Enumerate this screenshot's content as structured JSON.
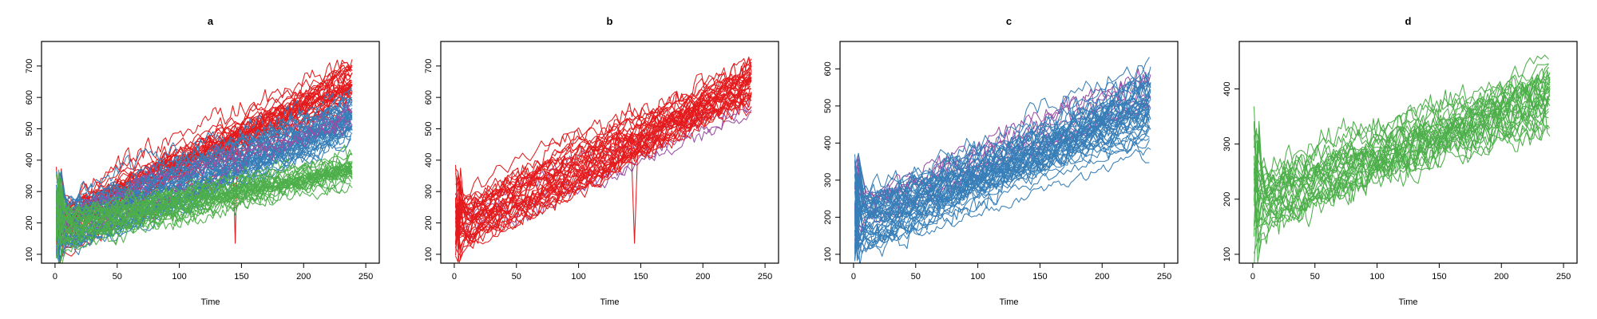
{
  "chart_data": [
    {
      "type": "line",
      "title": "a",
      "xlabel": "Time",
      "ylabel": "",
      "xlim": [
        0,
        250
      ],
      "ylim": [
        100,
        750
      ],
      "x_ticks": [
        0,
        50,
        100,
        150,
        200,
        250
      ],
      "y_ticks": [
        100,
        200,
        300,
        400,
        500,
        600,
        700
      ],
      "grid": false,
      "series": [
        {
          "color": "#E41A1C",
          "lines": 38,
          "x_range": [
            1,
            240
          ],
          "start": [
            120,
            250
          ],
          "end": [
            540,
            730
          ],
          "spike": {
            "x": 145,
            "y": 135
          }
        },
        {
          "color": "#377EB8",
          "lines": 45,
          "x_range": [
            1,
            240
          ],
          "start": [
            100,
            240
          ],
          "end": [
            420,
            620
          ]
        },
        {
          "color": "#984EA3",
          "lines": 4,
          "x_range": [
            1,
            240
          ],
          "start": [
            150,
            240
          ],
          "end": [
            460,
            600
          ]
        },
        {
          "color": "#4DAF4A",
          "lines": 30,
          "x_range": [
            1,
            240
          ],
          "start": [
            110,
            230
          ],
          "end": [
            300,
            430
          ]
        }
      ]
    },
    {
      "type": "line",
      "title": "b",
      "xlabel": "Time",
      "ylabel": "",
      "xlim": [
        0,
        250
      ],
      "ylim": [
        100,
        750
      ],
      "x_ticks": [
        0,
        50,
        100,
        150,
        200,
        250
      ],
      "y_ticks": [
        100,
        200,
        300,
        400,
        500,
        600,
        700
      ],
      "grid": false,
      "series": [
        {
          "color": "#984EA3",
          "lines": 3,
          "x_range": [
            1,
            240
          ],
          "start": [
            150,
            240
          ],
          "end": [
            540,
            600
          ]
        },
        {
          "color": "#E41A1C",
          "lines": 38,
          "x_range": [
            1,
            240
          ],
          "start": [
            100,
            250
          ],
          "end": [
            540,
            730
          ],
          "spike": {
            "x": 145,
            "y": 135
          }
        }
      ]
    },
    {
      "type": "line",
      "title": "c",
      "xlabel": "Time",
      "ylabel": "",
      "xlim": [
        0,
        250
      ],
      "ylim": [
        100,
        650
      ],
      "x_ticks": [
        0,
        50,
        100,
        150,
        200,
        250
      ],
      "y_ticks": [
        100,
        200,
        300,
        400,
        500,
        600
      ],
      "grid": false,
      "series": [
        {
          "color": "#984EA3",
          "lines": 8,
          "x_range": [
            1,
            240
          ],
          "start": [
            150,
            250
          ],
          "end": [
            440,
            600
          ]
        },
        {
          "color": "#377EB8",
          "lines": 45,
          "x_range": [
            1,
            240
          ],
          "start": [
            100,
            240
          ],
          "end": [
            330,
            630
          ]
        }
      ]
    },
    {
      "type": "line",
      "title": "d",
      "xlabel": "Time",
      "ylabel": "",
      "xlim": [
        0,
        250
      ],
      "ylim": [
        100,
        470
      ],
      "x_ticks": [
        0,
        50,
        100,
        150,
        200,
        250
      ],
      "y_ticks": [
        100,
        200,
        300,
        400
      ],
      "grid": false,
      "series": [
        {
          "color": "#4DAF4A",
          "lines": 30,
          "x_range": [
            1,
            240
          ],
          "start": [
            110,
            240
          ],
          "end": [
            290,
            470
          ]
        }
      ]
    }
  ]
}
